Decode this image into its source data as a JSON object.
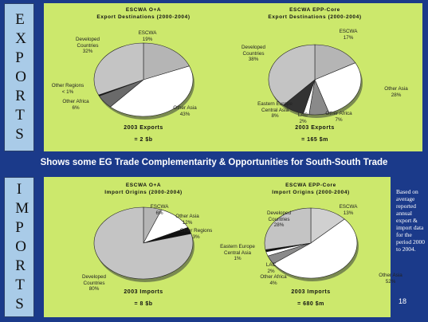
{
  "side_labels": [
    "EXPORTS",
    "IMPORTS"
  ],
  "banner": "Shows some EG Trade Complementarity & Opportunities for South-South Trade",
  "side_note": "Based on average reported annual export & import data for the period 2000 to 2004.",
  "page_number": "18",
  "chart_data": [
    {
      "type": "pie",
      "title": "ESCWA O+A",
      "subtitle": "Export Destinations (2000-2004)",
      "categories": [
        "ESCWA",
        "Other Asia",
        "Other Africa",
        "Other Regions",
        "Developed Countries"
      ],
      "values": [
        19,
        43,
        6,
        0.5,
        32
      ],
      "value_labels": [
        "19%",
        "43%",
        "6%",
        "< 1%",
        "32%"
      ],
      "colors": [
        "#b5b5b5",
        "#ffffff",
        "#6a6a6a",
        "#111111",
        "#c4c4c4"
      ],
      "annotations": [
        "2003 Exports",
        "= 2 $b"
      ]
    },
    {
      "type": "pie",
      "title": "ESCWA EPP-Core",
      "subtitle": "Export Destinations (2000-2004)",
      "categories": [
        "ESCWA",
        "Other Asia",
        "Other Africa",
        "LAC",
        "Eastern Europe Central Asia",
        "Developed Countries"
      ],
      "values": [
        17,
        28,
        7,
        2,
        8,
        38
      ],
      "value_labels": [
        "17%",
        "28%",
        "7%",
        "2%",
        "8%",
        "38%"
      ],
      "colors": [
        "#b5b5b5",
        "#ffffff",
        "#8a8a8a",
        "#ffffff",
        "#333333",
        "#c4c4c4"
      ],
      "annotations": [
        "2003 Exports",
        "= 165 $m"
      ]
    },
    {
      "type": "pie",
      "title": "ESCWA O+A",
      "subtitle": "Import Origins (2000-2004)",
      "categories": [
        "ESCWA",
        "Other Asia",
        "Other Regions",
        "Developed Countries"
      ],
      "values": [
        6,
        12,
        3,
        80
      ],
      "value_labels": [
        "6%",
        "12%",
        "3%",
        "80%"
      ],
      "colors": [
        "#b5b5b5",
        "#ffffff",
        "#111111",
        "#c4c4c4"
      ],
      "annotations": [
        "2003 Imports",
        "= 8 $b"
      ]
    },
    {
      "type": "pie",
      "title": "ESCWA EPP-Core",
      "subtitle": "Import Origins (2000-2004)",
      "categories": [
        "ESCWA",
        "Other Asia",
        "Other Africa",
        "LAC",
        "Eastern Europe Central Asia",
        "Developed Countries"
      ],
      "values": [
        13,
        52,
        4,
        2,
        1,
        28
      ],
      "value_labels": [
        "13%",
        "52%",
        "4%",
        "2%",
        "1%",
        "28%"
      ],
      "colors": [
        "#d0d0d0",
        "#ffffff",
        "#8a8a8a",
        "#ffffff",
        "#111111",
        "#c4c4c4"
      ],
      "annotations": [
        "2003 Imports",
        "= 680 $m"
      ]
    }
  ]
}
